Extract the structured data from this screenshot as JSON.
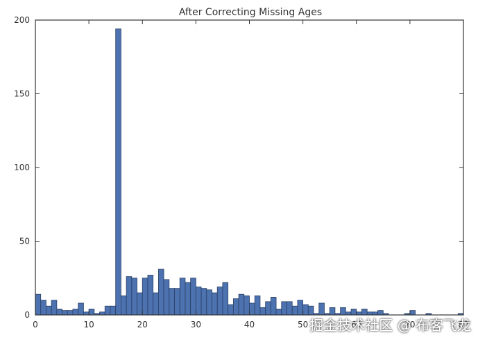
{
  "chart_data": {
    "type": "bar",
    "title": "After Correcting Missing Ages",
    "xlabel": "",
    "ylabel": "",
    "xlim": [
      0,
      80
    ],
    "ylim": [
      0,
      200
    ],
    "x_ticks": [
      0,
      10,
      20,
      30,
      40,
      50,
      60,
      70,
      80
    ],
    "y_ticks": [
      0,
      50,
      100,
      150,
      200
    ],
    "bin_width": 1,
    "bar_color": "#4c72b0",
    "bar_edge_color": "#2b3f63",
    "grid": false,
    "bins_start": [
      0,
      1,
      2,
      3,
      4,
      5,
      6,
      7,
      8,
      9,
      10,
      11,
      12,
      13,
      14,
      15,
      16,
      17,
      18,
      19,
      20,
      21,
      22,
      23,
      24,
      25,
      26,
      27,
      28,
      29,
      30,
      31,
      32,
      33,
      34,
      35,
      36,
      37,
      38,
      39,
      40,
      41,
      42,
      43,
      44,
      45,
      46,
      47,
      48,
      49,
      50,
      51,
      52,
      53,
      54,
      55,
      56,
      57,
      58,
      59,
      60,
      61,
      62,
      63,
      64,
      65,
      66,
      67,
      68,
      69,
      70,
      71,
      72,
      73,
      74,
      75,
      76,
      77,
      78,
      79
    ],
    "values": [
      14,
      10,
      6,
      10,
      4,
      3,
      3,
      4,
      8,
      2,
      4,
      1,
      2,
      6,
      6,
      194,
      13,
      26,
      25,
      15,
      25,
      27,
      15,
      31,
      24,
      18,
      18,
      25,
      22,
      25,
      19,
      18,
      17,
      15,
      19,
      22,
      7,
      11,
      14,
      13,
      8,
      13,
      5,
      9,
      12,
      4,
      9,
      9,
      6,
      10,
      7,
      6,
      1,
      8,
      1,
      5,
      1,
      5,
      2,
      4,
      2,
      4,
      2,
      2,
      3,
      1,
      0,
      0,
      0,
      1,
      3,
      0,
      0,
      1,
      0,
      0,
      0,
      0,
      0,
      1
    ]
  },
  "watermark": "掘金技术社区 @ 布客飞龙"
}
